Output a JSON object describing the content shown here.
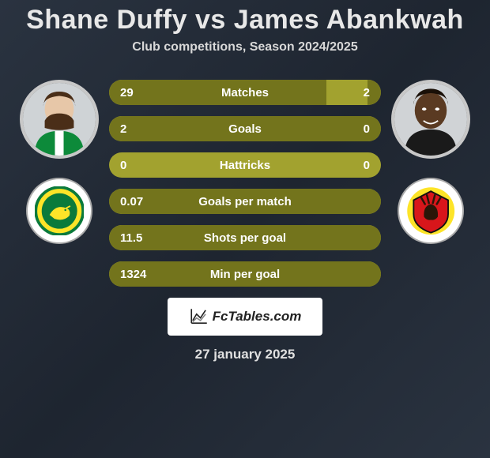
{
  "title": "Shane Duffy vs James Abankwah",
  "subtitle": "Club competitions, Season 2024/2025",
  "player_left": {
    "name": "Shane Duffy"
  },
  "player_right": {
    "name": "James Abankwah"
  },
  "club_left": {
    "name": "Norwich City"
  },
  "club_right": {
    "name": "Watford"
  },
  "colors": {
    "bar_bg": "#a2a22f",
    "bar_fill": "#73741c",
    "text": "#ffffff"
  },
  "stats": [
    {
      "label": "Matches",
      "left_val": "29",
      "right_val": "2",
      "left_pct": 80,
      "right_pct": 5
    },
    {
      "label": "Goals",
      "left_val": "2",
      "right_val": "0",
      "left_pct": 100,
      "right_pct": 0
    },
    {
      "label": "Hattricks",
      "left_val": "0",
      "right_val": "0",
      "left_pct": 0,
      "right_pct": 0
    },
    {
      "label": "Goals per match",
      "left_val": "0.07",
      "right_val": "",
      "left_pct": 100,
      "right_pct": 0
    },
    {
      "label": "Shots per goal",
      "left_val": "11.5",
      "right_val": "",
      "left_pct": 100,
      "right_pct": 0
    },
    {
      "label": "Min per goal",
      "left_val": "1324",
      "right_val": "",
      "left_pct": 100,
      "right_pct": 0
    }
  ],
  "footer": {
    "site_label": "FcTables.com",
    "date": "27 january 2025"
  }
}
